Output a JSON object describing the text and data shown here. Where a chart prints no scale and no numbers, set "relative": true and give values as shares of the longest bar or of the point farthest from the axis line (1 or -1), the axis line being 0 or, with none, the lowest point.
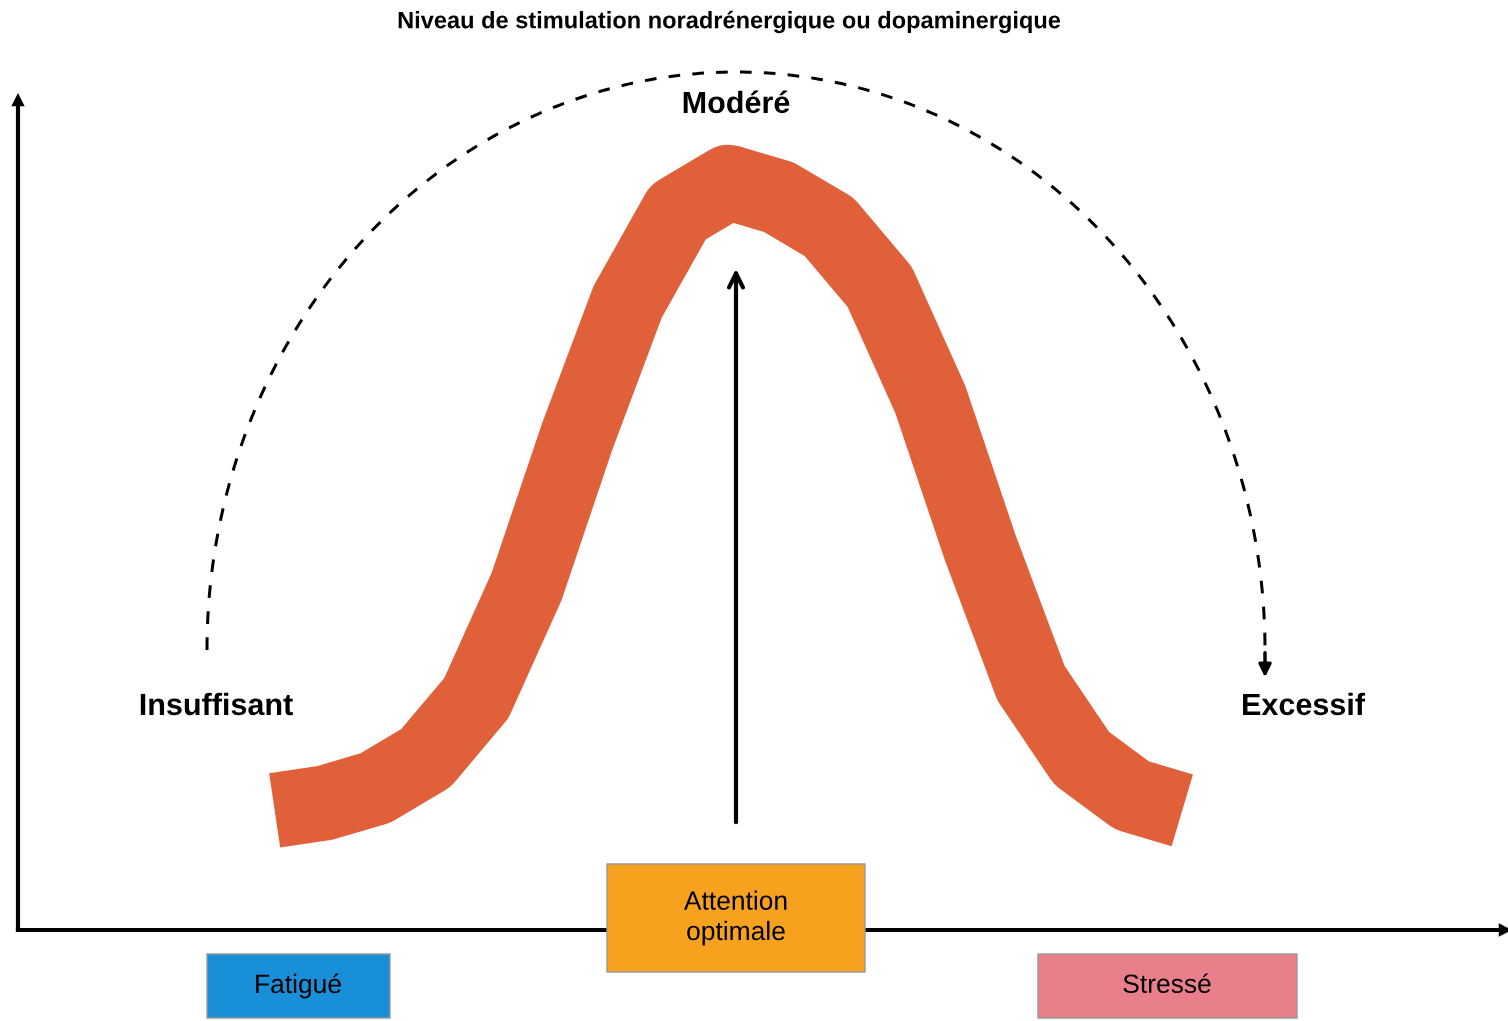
{
  "chart_data": {
    "type": "line",
    "relative": true,
    "title": "Niveau de stimulation noradrénergique ou dopaminergique",
    "categories": [
      null,
      null,
      null,
      null,
      null,
      null,
      null,
      null,
      null,
      null,
      null,
      null,
      null,
      null,
      null,
      null,
      null,
      null,
      null
    ],
    "series": [
      {
        "color": "#e0603a",
        "values": [
          0.16,
          0.17,
          0.19,
          0.23,
          0.31,
          0.46,
          0.66,
          0.84,
          0.96,
          1.0,
          0.98,
          0.94,
          0.86,
          0.71,
          0.51,
          0.33,
          0.23,
          0.18,
          0.16
        ]
      }
    ],
    "annotations": [
      "Modéré",
      "Insuffisant",
      "Excessif",
      "Fatigué",
      "Attention\noptimale",
      "Stressé"
    ]
  }
}
